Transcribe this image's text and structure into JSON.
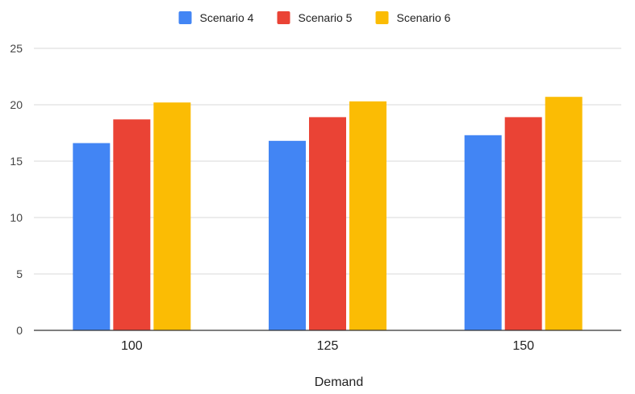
{
  "chart_data": {
    "type": "bar",
    "title": "",
    "xlabel": "Demand",
    "ylabel": "",
    "categories": [
      "100",
      "125",
      "150"
    ],
    "series": [
      {
        "name": "Scenario 4",
        "color": "#4285F4",
        "values": [
          16.6,
          16.8,
          17.3
        ]
      },
      {
        "name": "Scenario 5",
        "color": "#EA4335",
        "values": [
          18.7,
          18.9,
          18.9
        ]
      },
      {
        "name": "Scenario 6",
        "color": "#FBBC04",
        "values": [
          20.2,
          20.3,
          20.7
        ]
      }
    ],
    "ylim": [
      0,
      25
    ],
    "yticks": [
      "0",
      "5",
      "10",
      "15",
      "20",
      "25"
    ],
    "grid": true,
    "legend_position": "top-center"
  }
}
